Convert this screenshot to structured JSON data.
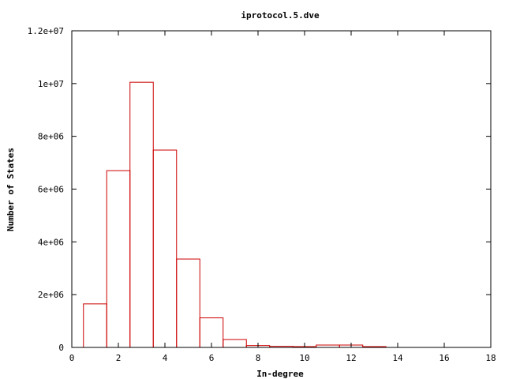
{
  "chart_data": {
    "type": "bar",
    "title": "iprotocol.5.dve",
    "xlabel": "In-degree",
    "ylabel": "Number of States",
    "xlim": [
      0,
      18
    ],
    "ylim": [
      0,
      12000000
    ],
    "x_ticks": [
      0,
      2,
      4,
      6,
      8,
      10,
      12,
      14,
      16,
      18
    ],
    "x_tick_labels": [
      "0",
      "2",
      "4",
      "6",
      "8",
      "10",
      "12",
      "14",
      "16",
      "18"
    ],
    "y_ticks": [
      0,
      2000000,
      4000000,
      6000000,
      8000000,
      10000000,
      12000000
    ],
    "y_tick_labels": [
      "0",
      "2e+06",
      "4e+06",
      "6e+06",
      "8e+06",
      "1e+07",
      "1.2e+07"
    ],
    "bar_width": 1,
    "bar_color": "#cc0000",
    "grid": false,
    "x": [
      1,
      2,
      3,
      4,
      5,
      6,
      7,
      8,
      9,
      10,
      11,
      12,
      13
    ],
    "values": [
      1650000,
      6700000,
      10050000,
      7480000,
      3350000,
      1120000,
      300000,
      70000,
      40000,
      30000,
      90000,
      90000,
      30000
    ]
  }
}
